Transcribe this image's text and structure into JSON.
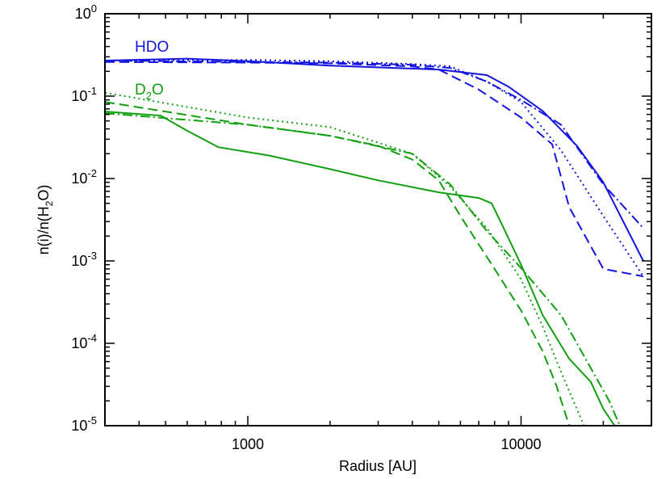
{
  "chart_data": {
    "type": "line",
    "xlabel": "Radius [AU]",
    "ylabel": {
      "prefix": "n(i)/n(H",
      "sub": "2",
      "suffix": "O)"
    },
    "x_scale": "log",
    "y_scale": "log",
    "xlim": [
      300,
      30000
    ],
    "ylim": [
      1e-05,
      1
    ],
    "x_ticks": [
      {
        "value": 1000,
        "label": "1000"
      },
      {
        "value": 10000,
        "label": "10000"
      }
    ],
    "y_ticks": [
      {
        "value": 1,
        "base": "10",
        "exp": "0"
      },
      {
        "value": 0.1,
        "base": "10",
        "exp": "-1"
      },
      {
        "value": 0.01,
        "base": "10",
        "exp": "-2"
      },
      {
        "value": 0.001,
        "base": "10",
        "exp": "-3"
      },
      {
        "value": 0.0001,
        "base": "10",
        "exp": "-4"
      },
      {
        "value": 1e-05,
        "base": "10",
        "exp": "-5"
      }
    ],
    "grid": false,
    "colors": {
      "HDO": "#1414e0",
      "D2O": "#10a010"
    },
    "annotations": [
      {
        "species": "HDO",
        "parts": [
          "HDO"
        ]
      },
      {
        "species": "D2O",
        "parts": [
          "D",
          "2",
          "O"
        ]
      }
    ],
    "series": [
      {
        "species": "HDO",
        "style": "solid",
        "x": [
          300,
          600,
          1000,
          2000,
          5000,
          7500,
          9000,
          12000,
          16000,
          20000,
          28000
        ],
        "y": [
          0.27,
          0.285,
          0.265,
          0.235,
          0.21,
          0.18,
          0.13,
          0.066,
          0.025,
          0.009,
          0.001
        ]
      },
      {
        "species": "HDO",
        "style": "dashed",
        "x": [
          300,
          1000,
          2000,
          4000,
          5000,
          7000,
          10000,
          13000,
          15000,
          20000,
          28000
        ],
        "y": [
          0.26,
          0.255,
          0.25,
          0.23,
          0.21,
          0.12,
          0.055,
          0.026,
          0.0045,
          0.0008,
          0.00065
        ]
      },
      {
        "species": "HDO",
        "style": "dotted",
        "x": [
          300,
          1000,
          2000,
          4000,
          5500,
          7500,
          10000,
          14000,
          20000,
          28000
        ],
        "y": [
          0.27,
          0.275,
          0.265,
          0.245,
          0.23,
          0.15,
          0.085,
          0.022,
          0.0035,
          0.00065
        ]
      },
      {
        "species": "HDO",
        "style": "dashdot",
        "x": [
          300,
          1000,
          2000,
          4000,
          5500,
          7500,
          10000,
          14000,
          20000,
          28000
        ],
        "y": [
          0.27,
          0.26,
          0.255,
          0.24,
          0.22,
          0.15,
          0.09,
          0.045,
          0.0085,
          0.0025
        ]
      },
      {
        "species": "D2O",
        "style": "solid",
        "x": [
          300,
          480,
          600,
          780,
          1200,
          2000,
          3000,
          5000,
          7000,
          7800,
          8500,
          10000,
          12000,
          15000,
          18000,
          20000,
          22000
        ],
        "y": [
          0.065,
          0.058,
          0.038,
          0.024,
          0.019,
          0.013,
          0.0095,
          0.0068,
          0.0058,
          0.005,
          0.0028,
          0.0009,
          0.00022,
          6.5e-05,
          3.4e-05,
          1.6e-05,
          1e-05
        ]
      },
      {
        "species": "D2O",
        "style": "dashed",
        "x": [
          300,
          1000,
          2000,
          3000,
          4000,
          5000,
          6000,
          8000,
          10000,
          12000,
          13500,
          15000
        ],
        "y": [
          0.085,
          0.045,
          0.033,
          0.025,
          0.017,
          0.0095,
          0.0035,
          0.0008,
          0.00025,
          8e-05,
          3e-05,
          1e-05
        ]
      },
      {
        "species": "D2O",
        "style": "dotted",
        "x": [
          300,
          1000,
          2000,
          4000,
          5500,
          7500,
          10000,
          12000,
          14000,
          17000
        ],
        "y": [
          0.11,
          0.055,
          0.042,
          0.02,
          0.008,
          0.0025,
          0.0006,
          0.00016,
          4.5e-05,
          1e-05
        ]
      },
      {
        "species": "D2O",
        "style": "dashdot",
        "x": [
          300,
          1000,
          2000,
          4000,
          5500,
          7500,
          10000,
          14000,
          18000,
          21000,
          23000
        ],
        "y": [
          0.062,
          0.045,
          0.033,
          0.02,
          0.0085,
          0.0023,
          0.00082,
          0.00022,
          5e-05,
          2e-05,
          1e-05
        ]
      }
    ]
  }
}
